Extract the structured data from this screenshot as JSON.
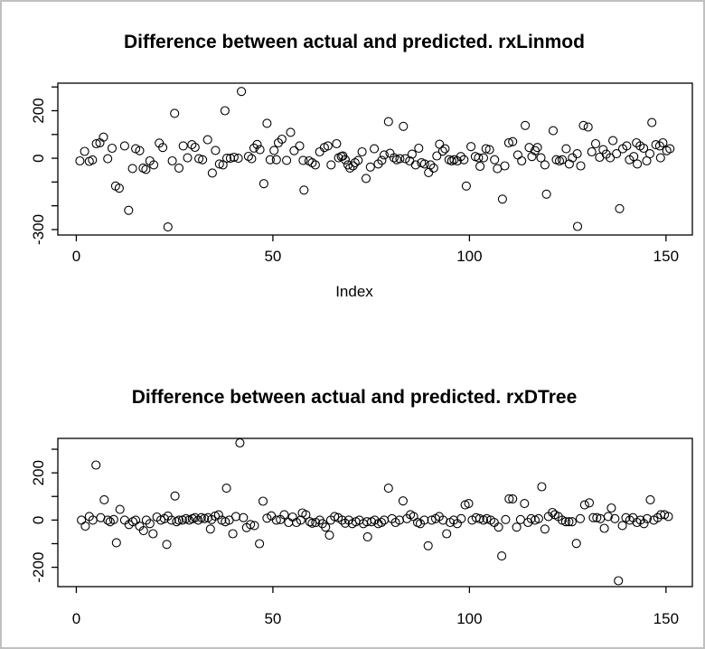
{
  "window": {
    "background": "#ffffff",
    "frame_border_color": "#c0c0c0",
    "plot_color": "#000000"
  },
  "chart_data": [
    {
      "type": "scatter",
      "title": "Difference between actual and predicted. rxLinmod",
      "xlabel": "Index",
      "ylabel": "",
      "marker": "open-circle",
      "grid": false,
      "xlim": [
        -4.7,
        156.7
      ],
      "ylim": [
        -323,
        316
      ],
      "x_ticks": [
        {
          "v": 0,
          "label": "0"
        },
        {
          "v": 50,
          "label": "50"
        },
        {
          "v": 100,
          "label": "100"
        },
        {
          "v": 150,
          "label": "150"
        }
      ],
      "y_ticks": [
        {
          "v": 300,
          "label": ""
        },
        {
          "v": 200,
          "label": "200"
        },
        {
          "v": 100,
          "label": ""
        },
        {
          "v": 0,
          "label": "0"
        },
        {
          "v": -100,
          "label": ""
        },
        {
          "v": -200,
          "label": ""
        },
        {
          "v": -300,
          "label": "-300"
        }
      ],
      "points": [
        [
          0.9,
          -11
        ],
        [
          2.1,
          29
        ],
        [
          3.3,
          -13
        ],
        [
          4.1,
          -7
        ],
        [
          5.1,
          61
        ],
        [
          6,
          65
        ],
        [
          6.9,
          89
        ],
        [
          8,
          -2
        ],
        [
          9.1,
          42
        ],
        [
          10,
          -117
        ],
        [
          10.9,
          -126
        ],
        [
          12.3,
          52
        ],
        [
          13.3,
          -219
        ],
        [
          14.3,
          -43
        ],
        [
          15.1,
          40
        ],
        [
          16.1,
          32
        ],
        [
          17,
          -41
        ],
        [
          17.7,
          -47
        ],
        [
          18.7,
          -11
        ],
        [
          19.7,
          -28
        ],
        [
          21.1,
          64
        ],
        [
          22,
          45
        ],
        [
          23.3,
          -289
        ],
        [
          24.4,
          -11
        ],
        [
          25,
          189
        ],
        [
          26.1,
          -41
        ],
        [
          27.2,
          52
        ],
        [
          28.3,
          2
        ],
        [
          29.4,
          57
        ],
        [
          30.2,
          46
        ],
        [
          31.2,
          -2
        ],
        [
          32.1,
          -6
        ],
        [
          33.4,
          78
        ],
        [
          34.6,
          -62
        ],
        [
          35.4,
          33
        ],
        [
          36.4,
          -24
        ],
        [
          37.3,
          -28
        ],
        [
          37.8,
          200
        ],
        [
          38.3,
          0
        ],
        [
          39.2,
          0
        ],
        [
          40.1,
          4
        ],
        [
          41.2,
          0
        ],
        [
          42,
          281
        ],
        [
          43.8,
          8
        ],
        [
          44.6,
          -2
        ],
        [
          45.2,
          43
        ],
        [
          46,
          58
        ],
        [
          46.7,
          36
        ],
        [
          47.7,
          -107
        ],
        [
          48.5,
          147
        ],
        [
          49.3,
          -6
        ],
        [
          50.3,
          33
        ],
        [
          50.9,
          -6
        ],
        [
          51.4,
          65
        ],
        [
          52.3,
          80
        ],
        [
          53.5,
          -9
        ],
        [
          54.5,
          109
        ],
        [
          55.4,
          32
        ],
        [
          56.8,
          52
        ],
        [
          57.7,
          -9
        ],
        [
          57.9,
          -134
        ],
        [
          59.2,
          -11
        ],
        [
          60,
          -19
        ],
        [
          60.8,
          -28
        ],
        [
          61.9,
          27
        ],
        [
          63.1,
          45
        ],
        [
          64,
          52
        ],
        [
          64.8,
          -28
        ],
        [
          66.2,
          61
        ],
        [
          66.7,
          2
        ],
        [
          67.4,
          7
        ],
        [
          67.8,
          10
        ],
        [
          68.4,
          -6
        ],
        [
          69.1,
          -28
        ],
        [
          69.6,
          -41
        ],
        [
          70.4,
          -32
        ],
        [
          70.9,
          -19
        ],
        [
          71.7,
          -9
        ],
        [
          72.7,
          27
        ],
        [
          73.7,
          -85
        ],
        [
          74.8,
          -37
        ],
        [
          75.8,
          40
        ],
        [
          76.8,
          -24
        ],
        [
          77.7,
          -9
        ],
        [
          78.3,
          14
        ],
        [
          79.4,
          154
        ],
        [
          79.8,
          21
        ],
        [
          80.8,
          2
        ],
        [
          81.5,
          -6
        ],
        [
          82.3,
          -2
        ],
        [
          83.2,
          134
        ],
        [
          83.7,
          -2
        ],
        [
          84.8,
          -11
        ],
        [
          85.4,
          17
        ],
        [
          86.3,
          -28
        ],
        [
          87.1,
          42
        ],
        [
          87.8,
          -19
        ],
        [
          88.6,
          -24
        ],
        [
          89.6,
          -60
        ],
        [
          90.1,
          -28
        ],
        [
          90.9,
          -41
        ],
        [
          91.7,
          10
        ],
        [
          92.4,
          59
        ],
        [
          93.2,
          30
        ],
        [
          93.8,
          40
        ],
        [
          94.8,
          -6
        ],
        [
          95.5,
          -11
        ],
        [
          96.1,
          -6
        ],
        [
          96.9,
          -11
        ],
        [
          97.8,
          7
        ],
        [
          98.6,
          -6
        ],
        [
          99.2,
          -117
        ],
        [
          100.4,
          49
        ],
        [
          101.5,
          7
        ],
        [
          102.3,
          2
        ],
        [
          102.7,
          -34
        ],
        [
          103.6,
          2
        ],
        [
          104.2,
          40
        ],
        [
          105.1,
          36
        ],
        [
          106.4,
          -6
        ],
        [
          107.1,
          -44
        ],
        [
          108.4,
          -172
        ],
        [
          109,
          -32
        ],
        [
          110,
          65
        ],
        [
          111,
          70
        ],
        [
          112.3,
          14
        ],
        [
          113.3,
          -11
        ],
        [
          114.2,
          138
        ],
        [
          115.2,
          45
        ],
        [
          115.9,
          7
        ],
        [
          116.7,
          32
        ],
        [
          117.3,
          45
        ],
        [
          118.2,
          2
        ],
        [
          119.2,
          -28
        ],
        [
          119.6,
          -151
        ],
        [
          121.3,
          116
        ],
        [
          122.1,
          -6
        ],
        [
          122.9,
          -11
        ],
        [
          123.6,
          -6
        ],
        [
          124.6,
          40
        ],
        [
          125.4,
          -24
        ],
        [
          126.2,
          2
        ],
        [
          127.4,
          19
        ],
        [
          127.5,
          -287
        ],
        [
          128.3,
          -32
        ],
        [
          129,
          138
        ],
        [
          130.2,
          131
        ],
        [
          131.1,
          27
        ],
        [
          132.1,
          61
        ],
        [
          133.1,
          4
        ],
        [
          134,
          36
        ],
        [
          134.8,
          17
        ],
        [
          135.8,
          2
        ],
        [
          136.5,
          74
        ],
        [
          137.4,
          19
        ],
        [
          138.2,
          -212
        ],
        [
          139,
          40
        ],
        [
          140,
          52
        ],
        [
          140.7,
          -6
        ],
        [
          141.8,
          7
        ],
        [
          142.5,
          65
        ],
        [
          142.7,
          -24
        ],
        [
          143.4,
          52
        ],
        [
          144.3,
          42
        ],
        [
          145.1,
          -11
        ],
        [
          145.9,
          19
        ],
        [
          146.4,
          150
        ],
        [
          147.4,
          57
        ],
        [
          148.4,
          52
        ],
        [
          148.6,
          2
        ],
        [
          149.2,
          65
        ],
        [
          150.2,
          32
        ],
        [
          151,
          40
        ]
      ]
    },
    {
      "type": "scatter",
      "title": "Difference between actual and predicted. rxDTree",
      "xlabel": "",
      "ylabel": "",
      "marker": "open-circle",
      "grid": false,
      "xlim": [
        -4.7,
        156.7
      ],
      "ylim": [
        -282,
        346
      ],
      "x_ticks": [
        {
          "v": 0,
          "label": "0"
        },
        {
          "v": 50,
          "label": "50"
        },
        {
          "v": 100,
          "label": "100"
        },
        {
          "v": 150,
          "label": "150"
        }
      ],
      "y_ticks": [
        {
          "v": 300,
          "label": ""
        },
        {
          "v": 200,
          "label": "200"
        },
        {
          "v": 100,
          "label": ""
        },
        {
          "v": 0,
          "label": "0"
        },
        {
          "v": -100,
          "label": ""
        },
        {
          "v": -200,
          "label": "-200"
        }
      ],
      "points": [
        [
          1.3,
          0
        ],
        [
          2.3,
          -26
        ],
        [
          3.3,
          15
        ],
        [
          4.2,
          0
        ],
        [
          5,
          233
        ],
        [
          6.2,
          10
        ],
        [
          7.1,
          86
        ],
        [
          8,
          0
        ],
        [
          8.6,
          -7
        ],
        [
          9.5,
          2
        ],
        [
          10.2,
          -96
        ],
        [
          11.1,
          45
        ],
        [
          12.3,
          0
        ],
        [
          13.4,
          -19
        ],
        [
          14.4,
          -7
        ],
        [
          15.1,
          0
        ],
        [
          16.1,
          -26
        ],
        [
          17.1,
          -45
        ],
        [
          17.8,
          0
        ],
        [
          18.7,
          -15
        ],
        [
          19.5,
          -58
        ],
        [
          20.5,
          13
        ],
        [
          21.5,
          0
        ],
        [
          22.4,
          6
        ],
        [
          23,
          -103
        ],
        [
          23.3,
          17
        ],
        [
          24.2,
          0
        ],
        [
          25.1,
          102
        ],
        [
          25.5,
          -7
        ],
        [
          26.1,
          0
        ],
        [
          27,
          0
        ],
        [
          27.9,
          6
        ],
        [
          28.7,
          0
        ],
        [
          29.5,
          6
        ],
        [
          30.2,
          10
        ],
        [
          31,
          0
        ],
        [
          31.8,
          10
        ],
        [
          32.6,
          6
        ],
        [
          33.5,
          10
        ],
        [
          34.1,
          -38
        ],
        [
          34.4,
          2
        ],
        [
          35.3,
          17
        ],
        [
          36.2,
          22
        ],
        [
          37,
          0
        ],
        [
          37.9,
          -7
        ],
        [
          38.2,
          135
        ],
        [
          38.9,
          0
        ],
        [
          39.8,
          -58
        ],
        [
          40.6,
          15
        ],
        [
          41.6,
          327
        ],
        [
          42.5,
          10
        ],
        [
          43.3,
          -32
        ],
        [
          44.3,
          -19
        ],
        [
          45.3,
          -23
        ],
        [
          46.6,
          -100
        ],
        [
          47.5,
          80
        ],
        [
          48.5,
          8
        ],
        [
          49.6,
          18
        ],
        [
          50.9,
          0
        ],
        [
          51.9,
          2
        ],
        [
          52.9,
          23
        ],
        [
          54,
          -10
        ],
        [
          55,
          13
        ],
        [
          56,
          -10
        ],
        [
          57.1,
          0
        ],
        [
          57.5,
          30
        ],
        [
          58.4,
          23
        ],
        [
          59.4,
          -7
        ],
        [
          60,
          -13
        ],
        [
          60.9,
          -10
        ],
        [
          61.9,
          0
        ],
        [
          62.6,
          -15
        ],
        [
          63.4,
          -30
        ],
        [
          64.4,
          -64
        ],
        [
          64.7,
          0
        ],
        [
          65.7,
          15
        ],
        [
          66.6,
          10
        ],
        [
          67.6,
          0
        ],
        [
          68.4,
          -13
        ],
        [
          69.3,
          0
        ],
        [
          70.2,
          -15
        ],
        [
          71.1,
          -7
        ],
        [
          72,
          0
        ],
        [
          73,
          -15
        ],
        [
          73.9,
          -7
        ],
        [
          74.1,
          -71
        ],
        [
          75.1,
          -7
        ],
        [
          75.9,
          0
        ],
        [
          76.8,
          -15
        ],
        [
          77.6,
          -10
        ],
        [
          78.3,
          0
        ],
        [
          79.4,
          135
        ],
        [
          80.3,
          6
        ],
        [
          81.2,
          -10
        ],
        [
          82.2,
          0
        ],
        [
          83.1,
          81
        ],
        [
          84.1,
          6
        ],
        [
          85,
          23
        ],
        [
          85.8,
          15
        ],
        [
          86.8,
          -10
        ],
        [
          87.5,
          -15
        ],
        [
          88.5,
          0
        ],
        [
          89.5,
          -109
        ],
        [
          90.4,
          0
        ],
        [
          91.4,
          6
        ],
        [
          92.3,
          15
        ],
        [
          93.3,
          0
        ],
        [
          94.2,
          -58
        ],
        [
          95.1,
          -10
        ],
        [
          96,
          0
        ],
        [
          96.9,
          -15
        ],
        [
          97.9,
          6
        ],
        [
          98.9,
          64
        ],
        [
          99.8,
          70
        ],
        [
          100.7,
          0
        ],
        [
          101.7,
          10
        ],
        [
          102.6,
          6
        ],
        [
          103.6,
          0
        ],
        [
          104.4,
          6
        ],
        [
          105.4,
          0
        ],
        [
          106.3,
          -10
        ],
        [
          107.4,
          -30
        ],
        [
          108.2,
          -152
        ],
        [
          109.2,
          2
        ],
        [
          110.1,
          90
        ],
        [
          111,
          90
        ],
        [
          112,
          -30
        ],
        [
          113,
          2
        ],
        [
          114,
          70
        ],
        [
          114.9,
          -10
        ],
        [
          115.7,
          6
        ],
        [
          116.7,
          0
        ],
        [
          117.6,
          6
        ],
        [
          118.4,
          141
        ],
        [
          119.2,
          -38
        ],
        [
          120.1,
          15
        ],
        [
          121.1,
          32
        ],
        [
          121.7,
          23
        ],
        [
          122.6,
          15
        ],
        [
          123.6,
          0
        ],
        [
          124.5,
          -7
        ],
        [
          125.3,
          -7
        ],
        [
          126.1,
          -7
        ],
        [
          127.2,
          -99
        ],
        [
          128.2,
          6
        ],
        [
          129.3,
          64
        ],
        [
          130.5,
          73
        ],
        [
          131.5,
          10
        ],
        [
          132.4,
          10
        ],
        [
          133.3,
          6
        ],
        [
          134.3,
          -35
        ],
        [
          135.3,
          15
        ],
        [
          136.1,
          51
        ],
        [
          137,
          6
        ],
        [
          137.9,
          -257
        ],
        [
          138.9,
          -23
        ],
        [
          139.8,
          10
        ],
        [
          140.8,
          0
        ],
        [
          141.6,
          10
        ],
        [
          142.6,
          -10
        ],
        [
          143.5,
          0
        ],
        [
          144.4,
          -15
        ],
        [
          145.2,
          6
        ],
        [
          146,
          86
        ],
        [
          146.9,
          0
        ],
        [
          147.9,
          10
        ],
        [
          148.7,
          23
        ],
        [
          149.6,
          23
        ],
        [
          150.6,
          15
        ]
      ]
    }
  ]
}
